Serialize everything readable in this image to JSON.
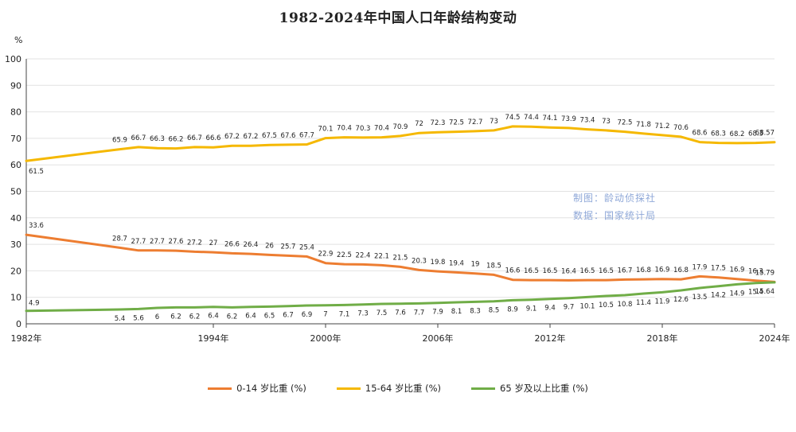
{
  "chart_data": {
    "type": "line",
    "title": "1982-2024年中国人口年龄结构变动",
    "ylabel": "%",
    "xlabel": "",
    "ylim": [
      0,
      100
    ],
    "yticks": [
      "0",
      "10",
      "20",
      "30",
      "40",
      "50",
      "60",
      "70",
      "80",
      "90",
      "100"
    ],
    "xtick_labels": [
      "1982年",
      "1994年",
      "2000年",
      "2006年",
      "2012年",
      "2018年",
      "2024年"
    ],
    "series": [
      {
        "name": "0-14 岁比重 (%)",
        "color": "#ED7D31",
        "points": [
          {
            "x": 1982,
            "y": 33.6
          },
          {
            "x": 1987,
            "y": 28.7
          },
          {
            "x": 1988,
            "y": 27.7
          },
          {
            "x": 1989,
            "y": 27.7
          },
          {
            "x": 1990,
            "y": 27.6
          },
          {
            "x": 1991,
            "y": 27.2
          },
          {
            "x": 1992,
            "y": 27
          },
          {
            "x": 1993,
            "y": 26.6
          },
          {
            "x": 1994,
            "y": 26.4
          },
          {
            "x": 1995,
            "y": 26
          },
          {
            "x": 1996,
            "y": 25.7
          },
          {
            "x": 1997,
            "y": 25.4
          },
          {
            "x": 1998,
            "y": 22.9
          },
          {
            "x": 1999,
            "y": 22.5
          },
          {
            "x": 2000,
            "y": 22.4
          },
          {
            "x": 2001,
            "y": 22.1
          },
          {
            "x": 2002,
            "y": 21.5
          },
          {
            "x": 2003,
            "y": 20.3
          },
          {
            "x": 2004,
            "y": 19.8
          },
          {
            "x": 2005,
            "y": 19.4
          },
          {
            "x": 2006,
            "y": 19
          },
          {
            "x": 2007,
            "y": 18.5
          },
          {
            "x": 2008,
            "y": 16.6
          },
          {
            "x": 2009,
            "y": 16.5
          },
          {
            "x": 2010,
            "y": 16.5
          },
          {
            "x": 2011,
            "y": 16.4
          },
          {
            "x": 2012,
            "y": 16.5
          },
          {
            "x": 2013,
            "y": 16.5
          },
          {
            "x": 2014,
            "y": 16.7
          },
          {
            "x": 2015,
            "y": 16.8
          },
          {
            "x": 2016,
            "y": 16.9
          },
          {
            "x": 2017,
            "y": 16.8
          },
          {
            "x": 2018,
            "y": 17.9
          },
          {
            "x": 2019,
            "y": 17.5
          },
          {
            "x": 2020,
            "y": 16.9
          },
          {
            "x": 2021,
            "y": 16.3
          },
          {
            "x": 2022,
            "y": 15.79
          }
        ]
      },
      {
        "name": "15-64 岁比重 (%)",
        "color": "#F5B800",
        "points": [
          {
            "x": 1982,
            "y": 61.5
          },
          {
            "x": 1987,
            "y": 65.9
          },
          {
            "x": 1988,
            "y": 66.7
          },
          {
            "x": 1989,
            "y": 66.3
          },
          {
            "x": 1990,
            "y": 66.2
          },
          {
            "x": 1991,
            "y": 66.7
          },
          {
            "x": 1992,
            "y": 66.6
          },
          {
            "x": 1993,
            "y": 67.2
          },
          {
            "x": 1994,
            "y": 67.2
          },
          {
            "x": 1995,
            "y": 67.5
          },
          {
            "x": 1996,
            "y": 67.6
          },
          {
            "x": 1997,
            "y": 67.7
          },
          {
            "x": 1998,
            "y": 70.1
          },
          {
            "x": 1999,
            "y": 70.4
          },
          {
            "x": 2000,
            "y": 70.3
          },
          {
            "x": 2001,
            "y": 70.4
          },
          {
            "x": 2002,
            "y": 70.9
          },
          {
            "x": 2003,
            "y": 72
          },
          {
            "x": 2004,
            "y": 72.3
          },
          {
            "x": 2005,
            "y": 72.5
          },
          {
            "x": 2006,
            "y": 72.7
          },
          {
            "x": 2007,
            "y": 73
          },
          {
            "x": 2008,
            "y": 74.5
          },
          {
            "x": 2009,
            "y": 74.4
          },
          {
            "x": 2010,
            "y": 74.1
          },
          {
            "x": 2011,
            "y": 73.9
          },
          {
            "x": 2012,
            "y": 73.4
          },
          {
            "x": 2013,
            "y": 73
          },
          {
            "x": 2014,
            "y": 72.5
          },
          {
            "x": 2015,
            "y": 71.8
          },
          {
            "x": 2016,
            "y": 71.2
          },
          {
            "x": 2017,
            "y": 70.6
          },
          {
            "x": 2018,
            "y": 68.6
          },
          {
            "x": 2019,
            "y": 68.3
          },
          {
            "x": 2020,
            "y": 68.2
          },
          {
            "x": 2021,
            "y": 68.3
          },
          {
            "x": 2022,
            "y": 68.57
          }
        ]
      },
      {
        "name": "65 岁及以上比重 (%)",
        "color": "#70AD47",
        "points": [
          {
            "x": 1982,
            "y": 4.9
          },
          {
            "x": 1987,
            "y": 5.4
          },
          {
            "x": 1988,
            "y": 5.6
          },
          {
            "x": 1989,
            "y": 6
          },
          {
            "x": 1990,
            "y": 6.2
          },
          {
            "x": 1991,
            "y": 6.2
          },
          {
            "x": 1992,
            "y": 6.4
          },
          {
            "x": 1993,
            "y": 6.2
          },
          {
            "x": 1994,
            "y": 6.4
          },
          {
            "x": 1995,
            "y": 6.5
          },
          {
            "x": 1996,
            "y": 6.7
          },
          {
            "x": 1997,
            "y": 6.9
          },
          {
            "x": 1998,
            "y": 7
          },
          {
            "x": 1999,
            "y": 7.1
          },
          {
            "x": 2000,
            "y": 7.3
          },
          {
            "x": 2001,
            "y": 7.5
          },
          {
            "x": 2002,
            "y": 7.6
          },
          {
            "x": 2003,
            "y": 7.7
          },
          {
            "x": 2004,
            "y": 7.9
          },
          {
            "x": 2005,
            "y": 8.1
          },
          {
            "x": 2006,
            "y": 8.3
          },
          {
            "x": 2007,
            "y": 8.5
          },
          {
            "x": 2008,
            "y": 8.9
          },
          {
            "x": 2009,
            "y": 9.1
          },
          {
            "x": 2010,
            "y": 9.4
          },
          {
            "x": 2011,
            "y": 9.7
          },
          {
            "x": 2012,
            "y": 10.1
          },
          {
            "x": 2013,
            "y": 10.5
          },
          {
            "x": 2014,
            "y": 10.8
          },
          {
            "x": 2015,
            "y": 11.4
          },
          {
            "x": 2016,
            "y": 11.9
          },
          {
            "x": 2017,
            "y": 12.6
          },
          {
            "x": 2018,
            "y": 13.5
          },
          {
            "x": 2019,
            "y": 14.2
          },
          {
            "x": 2020,
            "y": 14.9
          },
          {
            "x": 2021,
            "y": 15.4
          },
          {
            "x": 2022,
            "y": 15.64
          }
        ]
      }
    ],
    "x_tick_positions": [
      1982,
      1992,
      1998,
      2004,
      2010,
      2016,
      2022
    ],
    "x_range": [
      1982,
      2022
    ],
    "grid": true,
    "legend_position": "bottom"
  },
  "watermark": {
    "line1": "制图：龄动侦探社",
    "line2": "数据：国家统计局"
  }
}
